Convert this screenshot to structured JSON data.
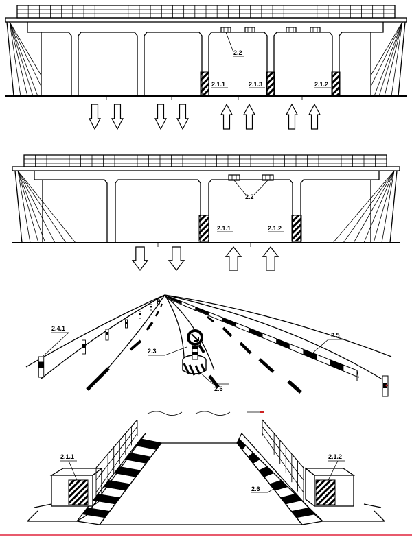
{
  "panels": {
    "bridge_top": {
      "labels": {
        "overhead": "2.2",
        "left_pier": "2.1.1",
        "middle_pier": "2.1.3",
        "right_pier": "2.1.2"
      }
    },
    "bridge_middle": {
      "labels": {
        "overhead": "2.2",
        "left_pier": "2.1.1",
        "right_pier": "2.1.2"
      }
    },
    "road_perspective": {
      "labels": {
        "posts": "2.4.1",
        "island_sign": "2.3",
        "barrier": "2.5",
        "island": "2.6"
      }
    },
    "ramp": {
      "labels": {
        "left_box": "2.1.1",
        "right_box": "2.1.2",
        "curb": "2.6"
      }
    }
  },
  "colors": {
    "ink": "#000000",
    "background": "#ffffff",
    "footer_line": "#e0243c",
    "sign_dot": "#cc2222"
  }
}
